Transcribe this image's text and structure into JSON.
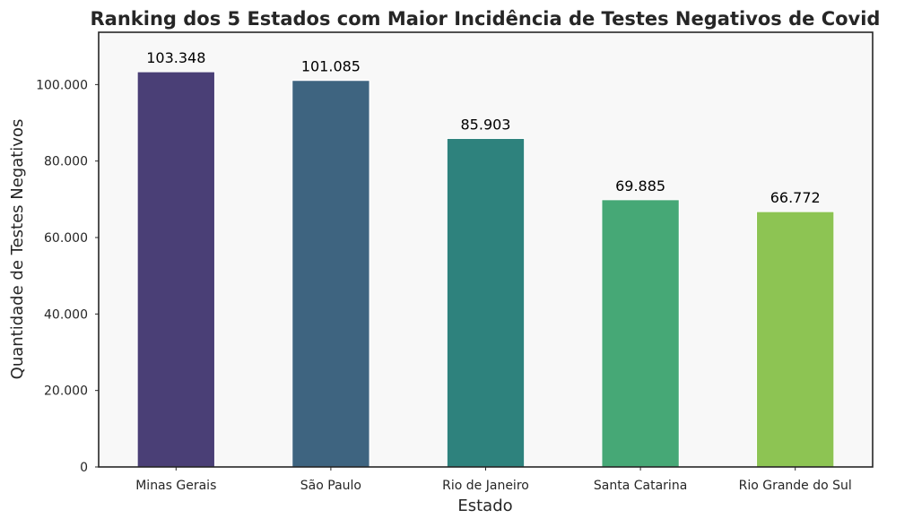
{
  "chart_data": {
    "type": "bar",
    "title": "Ranking dos 5 Estados com Maior Incidência de Testes Negativos de Covid",
    "xlabel": "Estado",
    "ylabel": "Quantidade de Testes Negativos",
    "categories": [
      "Minas Gerais",
      "São Paulo",
      "Rio de Janeiro",
      "Santa Catarina",
      "Rio Grande do Sul"
    ],
    "values": [
      103348,
      101085,
      85903,
      69885,
      66772
    ],
    "value_labels": [
      "103.348",
      "101.085",
      "85.903",
      "69.885",
      "66.772"
    ],
    "colors": [
      "#4a3f76",
      "#3e6480",
      "#2e827d",
      "#46a876",
      "#8dc453"
    ],
    "ylim": [
      0,
      113683
    ],
    "yticks": [
      0,
      20000,
      40000,
      60000,
      80000,
      100000
    ],
    "ytick_labels": [
      "0",
      "20.000",
      "40.000",
      "60.000",
      "80.000",
      "100.000"
    ],
    "grid": false,
    "legend": "none",
    "background": "#f8f8f8"
  }
}
